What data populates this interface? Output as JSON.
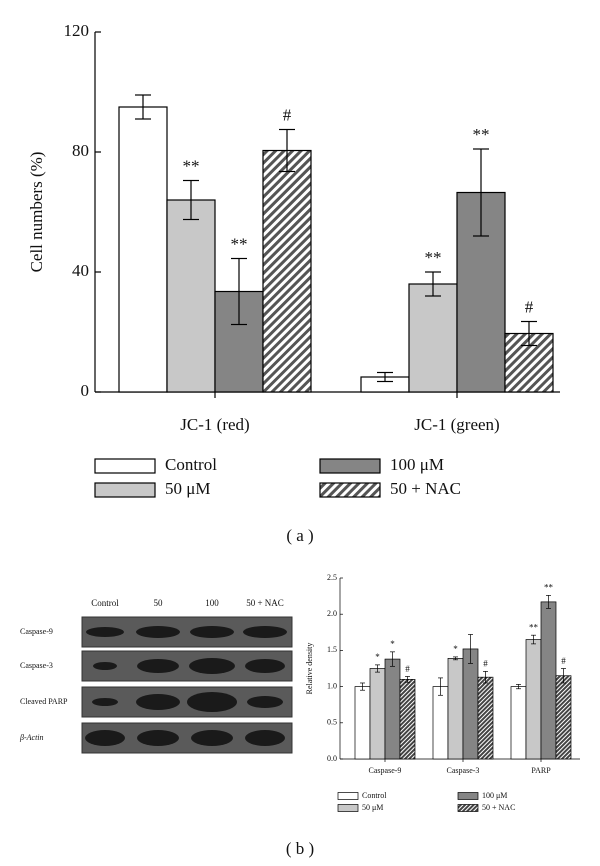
{
  "chart_data": [
    {
      "type": "bar",
      "ylabel": "Cell numbers (%)",
      "caption": "( a )",
      "categories": [
        "JC-1 (red)",
        "JC-1 (green)"
      ],
      "ylim": [
        0,
        120
      ],
      "yticks": [
        0,
        40,
        80,
        120
      ],
      "series": [
        {
          "name": "Control",
          "color": "#ffffff",
          "values": [
            95,
            5
          ],
          "errors": [
            4,
            1.5
          ],
          "annotations": [
            null,
            null
          ]
        },
        {
          "name": "50 μM",
          "color": "#c8c8c8",
          "values": [
            64,
            36
          ],
          "errors": [
            6.5,
            4
          ],
          "annotations": [
            "**",
            "**"
          ]
        },
        {
          "name": "100 μM",
          "color": "#858585",
          "values": [
            33.5,
            66.5
          ],
          "errors": [
            11,
            14.5
          ],
          "annotations": [
            "**",
            "**"
          ]
        },
        {
          "name": "50 + NAC",
          "color": "#555555",
          "pattern": "hatch",
          "values": [
            80.5,
            19.5
          ],
          "errors": [
            7,
            4
          ],
          "annotations": [
            "#",
            "#"
          ]
        }
      ]
    },
    {
      "type": "bar",
      "ylabel": "Relative density",
      "caption": "( b )",
      "categories": [
        "Caspase-9",
        "Caspase-3",
        "PARP"
      ],
      "ylim": [
        0,
        2.5
      ],
      "yticks": [
        {
          "value": 0,
          "label": "0.0"
        },
        {
          "value": 0.5,
          "label": "0.5"
        },
        {
          "value": 1,
          "label": "1.0"
        },
        {
          "value": 1.5,
          "label": "1.5"
        },
        {
          "value": 2,
          "label": "2.0"
        },
        {
          "value": 2.5,
          "label": "2.5"
        }
      ],
      "series": [
        {
          "name": "Control",
          "color": "#ffffff",
          "values": [
            1.0,
            1.0,
            1.0
          ],
          "errors": [
            0.05,
            0.12,
            0.03
          ],
          "annotations": [
            null,
            null,
            null
          ]
        },
        {
          "name": "50 μM",
          "color": "#c8c8c8",
          "values": [
            1.25,
            1.39,
            1.65
          ],
          "errors": [
            0.05,
            0.02,
            0.06
          ],
          "annotations": [
            "*",
            "*",
            "**"
          ]
        },
        {
          "name": "100 μM",
          "color": "#858585",
          "values": [
            1.38,
            1.52,
            2.17
          ],
          "errors": [
            0.1,
            0.2,
            0.09
          ],
          "annotations": [
            "*",
            null,
            "**"
          ]
        },
        {
          "name": "50 + NAC",
          "color": "#444444",
          "pattern": "hatch",
          "values": [
            1.1,
            1.13,
            1.15
          ],
          "errors": [
            0.04,
            0.08,
            0.1
          ],
          "annotations": [
            "#",
            "#",
            "#"
          ]
        }
      ]
    }
  ],
  "blot": {
    "lanes": [
      "Control",
      "50",
      "100",
      "50 + NAC"
    ],
    "rows": [
      "Caspase-9",
      "Caspase-3",
      "Cleaved PARP",
      "β-Actin"
    ]
  }
}
